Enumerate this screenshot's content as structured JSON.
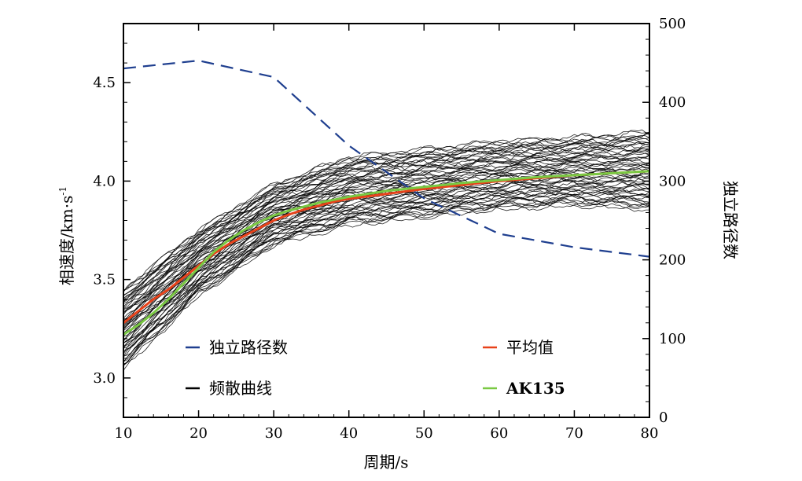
{
  "chart_data": {
    "type": "line",
    "xlabel": "周期/s",
    "ylabel_left": "相速度/km·s",
    "ylabel_left_sup": "-1",
    "ylabel_right": "独立路径数",
    "xlim": [
      10,
      80
    ],
    "ylim_left": [
      2.8,
      4.8
    ],
    "ylim_right": [
      0,
      500
    ],
    "x_ticks": [
      10,
      20,
      30,
      40,
      50,
      60,
      70,
      80
    ],
    "x_tick_labels": [
      "10",
      "20",
      "30",
      "40",
      "50",
      "60",
      "70",
      "80"
    ],
    "y_left_ticks": [
      3.0,
      3.5,
      4.0,
      4.5
    ],
    "y_left_tick_labels": [
      "3.0",
      "3.5",
      "4.0",
      "4.5"
    ],
    "y_right_ticks": [
      0,
      100,
      200,
      300,
      400,
      500
    ],
    "y_right_tick_labels": [
      "0",
      "100",
      "200",
      "300",
      "400",
      "500"
    ],
    "grid": false,
    "legend": {
      "placement": "bottom",
      "entries": [
        {
          "label": "独立路径数",
          "color": "#1f3f8f",
          "style": "dashed",
          "key": "paths"
        },
        {
          "label": "平均值",
          "color": "#e8421a",
          "style": "solid",
          "key": "mean"
        },
        {
          "label": "频散曲线",
          "color": "#000000",
          "style": "solid",
          "key": "curves"
        },
        {
          "label": "AK135",
          "color": "#7ac943",
          "style": "solid",
          "key": "ak135",
          "bold": true
        }
      ]
    },
    "series": [
      {
        "name": "独立路径数",
        "axis": "right",
        "color": "#1f3f8f",
        "style": "dashed",
        "x": [
          10,
          20,
          30,
          40,
          50,
          60,
          70,
          80
        ],
        "y": [
          443,
          453,
          432,
          345,
          278,
          233,
          216,
          204
        ]
      },
      {
        "name": "平均值",
        "axis": "left",
        "color": "#e8421a",
        "style": "solid",
        "x": [
          10,
          12,
          14,
          16,
          18,
          20,
          22,
          24,
          26,
          28,
          30,
          32,
          34,
          36,
          38,
          40,
          45,
          50,
          55,
          60,
          65,
          70,
          75,
          80
        ],
        "y": [
          3.28,
          3.34,
          3.4,
          3.45,
          3.51,
          3.57,
          3.63,
          3.68,
          3.72,
          3.76,
          3.8,
          3.83,
          3.855,
          3.875,
          3.895,
          3.91,
          3.935,
          3.96,
          3.98,
          4.0,
          4.015,
          4.03,
          4.04,
          4.05
        ]
      },
      {
        "name": "AK135",
        "axis": "left",
        "color": "#7ac943",
        "style": "solid",
        "x": [
          10,
          12,
          14,
          16,
          18,
          20,
          22,
          24,
          26,
          28,
          30,
          32,
          34,
          36,
          38,
          40,
          45,
          50,
          55,
          60,
          65,
          70,
          75,
          80
        ],
        "y": [
          3.22,
          3.27,
          3.33,
          3.4,
          3.48,
          3.56,
          3.64,
          3.7,
          3.75,
          3.79,
          3.825,
          3.85,
          3.87,
          3.89,
          3.905,
          3.92,
          3.95,
          3.97,
          3.99,
          4.005,
          4.02,
          4.03,
          4.04,
          4.05
        ]
      },
      {
        "name": "频散曲线",
        "axis": "left",
        "color": "#000000",
        "style": "solid",
        "band": {
          "x": [
            10,
            20,
            30,
            40,
            50,
            60,
            70,
            80
          ],
          "lower": [
            3.05,
            3.42,
            3.68,
            3.78,
            3.82,
            3.86,
            3.88,
            3.86
          ],
          "upper": [
            3.45,
            3.75,
            3.98,
            4.12,
            4.16,
            4.2,
            4.22,
            4.25
          ]
        },
        "count": 60
      }
    ]
  }
}
